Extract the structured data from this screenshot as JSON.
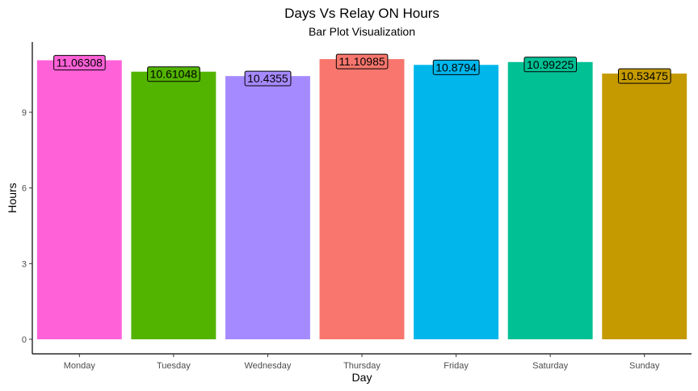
{
  "chart_data": {
    "type": "bar",
    "title": "Days Vs Relay ON Hours",
    "subtitle": "Bar Plot Visualization",
    "xlabel": "Day",
    "ylabel": "Hours",
    "categories": [
      "Monday",
      "Tuesday",
      "Wednesday",
      "Thursday",
      "Friday",
      "Saturday",
      "Sunday"
    ],
    "values": [
      11.06308,
      10.61048,
      10.4355,
      11.10985,
      10.8794,
      10.99225,
      10.53475
    ],
    "value_labels": [
      "11.06308",
      "10.61048",
      "10.4355",
      "11.10985",
      "10.8794",
      "10.99225",
      "10.53475"
    ],
    "colors": [
      "#FF61D8",
      "#53B400",
      "#A58AFF",
      "#F8766D",
      "#00B6EB",
      "#00C094",
      "#C49A00"
    ],
    "yticks": [
      0,
      3,
      6,
      9
    ],
    "ytick_labels": [
      "0",
      "3",
      "6",
      "9"
    ],
    "ylim": [
      0,
      11.67
    ],
    "grid": false,
    "legend": "none"
  }
}
